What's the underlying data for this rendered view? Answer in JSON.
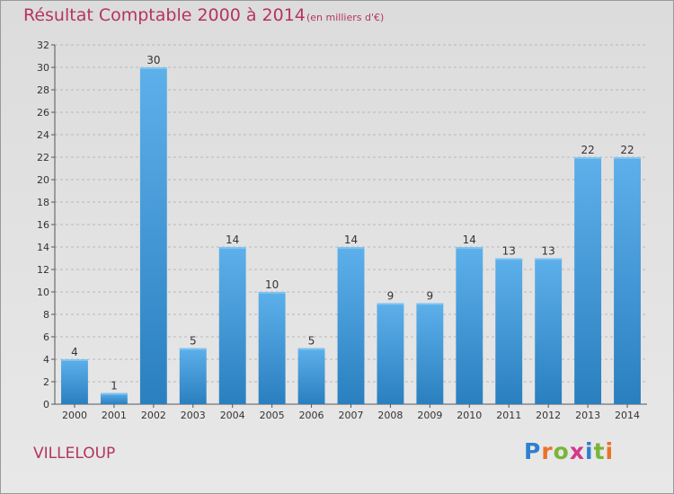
{
  "title": "Résultat Comptable 2000 à 2014",
  "subtitle": "(en milliers d'€)",
  "commune": "VILLELOUP",
  "logo": {
    "text": "Proxiti",
    "letters": [
      "P",
      "r",
      "o",
      "x",
      "i",
      "t",
      "i"
    ],
    "colors": [
      "#2f7fcf",
      "#e8732a",
      "#7ab43a",
      "#d23a8a",
      "#2f7fcf",
      "#7ab43a",
      "#e8732a"
    ]
  },
  "colors": {
    "accent": "#b5345f",
    "bar_light": "#5db0ea",
    "bar_dark": "#2a7fbf",
    "grid": "#b8b8b8"
  },
  "chart_data": {
    "type": "bar",
    "categories": [
      "2000",
      "2001",
      "2002",
      "2003",
      "2004",
      "2005",
      "2006",
      "2007",
      "2008",
      "2009",
      "2010",
      "2011",
      "2012",
      "2013",
      "2014"
    ],
    "values": [
      4,
      1,
      30,
      5,
      14,
      10,
      5,
      14,
      9,
      9,
      14,
      13,
      13,
      22,
      22
    ],
    "data_labels": [
      "4",
      "1",
      "30",
      "5",
      "14",
      "10",
      "5",
      "14",
      "9",
      "9",
      "14",
      "13",
      "13",
      "22",
      "22"
    ],
    "yticks": [
      0,
      2,
      4,
      6,
      8,
      10,
      12,
      14,
      16,
      18,
      20,
      22,
      24,
      26,
      28,
      30,
      32
    ],
    "ylim": [
      0,
      32
    ],
    "grid": true,
    "grid_style": "dashed horizontal",
    "xlabel": "",
    "ylabel": ""
  }
}
